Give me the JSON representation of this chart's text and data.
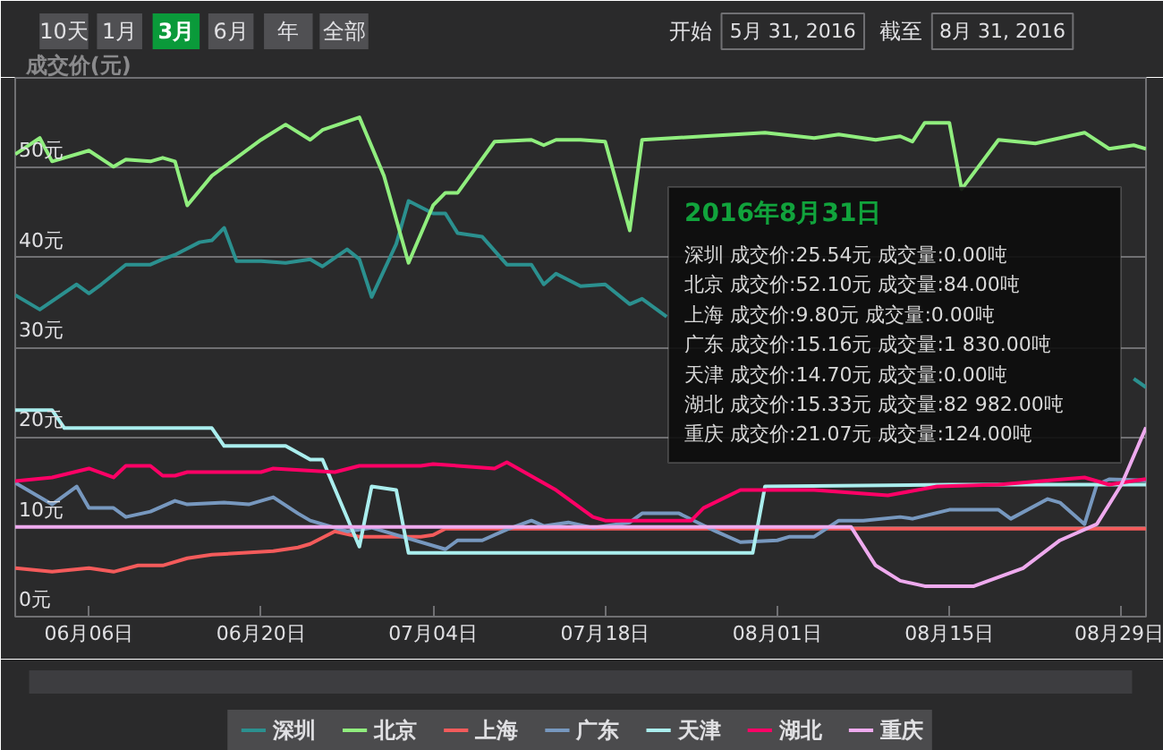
{
  "chart_data": {
    "type": "line",
    "ylabel": "成交价(元)",
    "xlim": [
      "2016-05-31",
      "2016-08-31"
    ],
    "xticks": [
      {
        "value": "2016-06-06",
        "label": "06月06日"
      },
      {
        "value": "2016-06-20",
        "label": "06月20日"
      },
      {
        "value": "2016-07-04",
        "label": "07月04日"
      },
      {
        "value": "2016-07-18",
        "label": "07月18日"
      },
      {
        "value": "2016-08-01",
        "label": "08月01日"
      },
      {
        "value": "2016-08-15",
        "label": "08月15日"
      },
      {
        "value": "2016-08-29",
        "label": "08月29日"
      }
    ],
    "ylim": [
      0,
      60
    ],
    "yticks": [
      {
        "value": 0,
        "label": "0元"
      },
      {
        "value": 10,
        "label": "10元"
      },
      {
        "value": 20,
        "label": "20元"
      },
      {
        "value": 30,
        "label": "30元"
      },
      {
        "value": 40,
        "label": "40元"
      },
      {
        "value": 50,
        "label": "50元"
      }
    ],
    "grid": "y",
    "legend": "bottom",
    "line_style": "solid",
    "series": [
      {
        "name": "深圳",
        "color": "#2b908f",
        "x": [
          "2016-05-31",
          "2016-06-02",
          "2016-06-05",
          "2016-06-06",
          "2016-06-07",
          "2016-06-09",
          "2016-06-11",
          "2016-06-12",
          "2016-06-13",
          "2016-06-15",
          "2016-06-16",
          "2016-06-17",
          "2016-06-18",
          "2016-06-20",
          "2016-06-22",
          "2016-06-24",
          "2016-06-25",
          "2016-06-27",
          "2016-06-28",
          "2016-06-29",
          "2016-07-01",
          "2016-07-02",
          "2016-07-04",
          "2016-07-05",
          "2016-07-06",
          "2016-07-08",
          "2016-07-10",
          "2016-07-12",
          "2016-07-13",
          "2016-07-14",
          "2016-07-16",
          "2016-07-18",
          "2016-07-20",
          "2016-07-21",
          "2016-07-23",
          "2016-08-01",
          "2016-08-28",
          "2016-08-30",
          "2016-08-31"
        ],
        "values": [
          35.8,
          34.2,
          37.0,
          36.0,
          37.0,
          39.2,
          39.2,
          39.8,
          40.3,
          41.7,
          41.9,
          43.3,
          39.6,
          39.6,
          39.4,
          39.8,
          39.0,
          40.9,
          39.8,
          35.6,
          41.5,
          46.3,
          44.9,
          44.9,
          42.7,
          42.3,
          39.2,
          39.2,
          37.0,
          38.2,
          36.8,
          37.0,
          34.8,
          35.4,
          33.4,
          null,
          null,
          26.5,
          25.54
        ]
      },
      {
        "name": "北京",
        "color": "#90ee7e",
        "x": [
          "2016-05-31",
          "2016-06-02",
          "2016-06-03",
          "2016-06-06",
          "2016-06-08",
          "2016-06-09",
          "2016-06-11",
          "2016-06-12",
          "2016-06-13",
          "2016-06-14",
          "2016-06-16",
          "2016-06-18",
          "2016-06-20",
          "2016-06-22",
          "2016-06-24",
          "2016-06-25",
          "2016-06-28",
          "2016-06-30",
          "2016-07-02",
          "2016-07-04",
          "2016-07-05",
          "2016-07-06",
          "2016-07-09",
          "2016-07-12",
          "2016-07-13",
          "2016-07-14",
          "2016-07-16",
          "2016-07-18",
          "2016-07-20",
          "2016-07-21",
          "2016-07-26",
          "2016-07-31",
          "2016-08-04",
          "2016-08-06",
          "2016-08-09",
          "2016-08-11",
          "2016-08-12",
          "2016-08-13",
          "2016-08-15",
          "2016-08-16",
          "2016-08-19",
          "2016-08-22",
          "2016-08-26",
          "2016-08-28",
          "2016-08-30",
          "2016-08-31"
        ],
        "values": [
          51.5,
          53.3,
          50.7,
          51.9,
          50.1,
          50.9,
          50.7,
          51.1,
          50.7,
          45.8,
          49.1,
          51.1,
          53.1,
          54.8,
          53.1,
          54.2,
          55.6,
          49.1,
          39.4,
          45.8,
          47.2,
          47.2,
          52.9,
          53.1,
          52.5,
          53.1,
          53.1,
          52.9,
          43.0,
          53.1,
          53.5,
          53.9,
          53.3,
          53.7,
          53.1,
          53.5,
          52.9,
          55.0,
          55.0,
          47.6,
          53.1,
          52.7,
          53.9,
          52.1,
          52.5,
          52.1
        ]
      },
      {
        "name": "上海",
        "color": "#f45b5b",
        "x": [
          "2016-05-31",
          "2016-06-03",
          "2016-06-06",
          "2016-06-08",
          "2016-06-10",
          "2016-06-12",
          "2016-06-14",
          "2016-06-16",
          "2016-06-21",
          "2016-06-23",
          "2016-06-24",
          "2016-06-26",
          "2016-06-28",
          "2016-07-03",
          "2016-07-04",
          "2016-07-05",
          "2016-08-31"
        ],
        "values": [
          5.4,
          5.0,
          5.4,
          5.0,
          5.7,
          5.7,
          6.5,
          6.9,
          7.3,
          7.7,
          8.1,
          9.5,
          8.9,
          8.9,
          9.1,
          9.8,
          9.8
        ]
      },
      {
        "name": "广东",
        "color": "#7798bf",
        "x": [
          "2016-05-31",
          "2016-06-03",
          "2016-06-05",
          "2016-06-06",
          "2016-06-08",
          "2016-06-09",
          "2016-06-11",
          "2016-06-13",
          "2016-06-14",
          "2016-06-17",
          "2016-06-19",
          "2016-06-21",
          "2016-06-23",
          "2016-06-24",
          "2016-06-27",
          "2016-06-29",
          "2016-07-01",
          "2016-07-05",
          "2016-07-06",
          "2016-07-08",
          "2016-07-10",
          "2016-07-12",
          "2016-07-13",
          "2016-07-15",
          "2016-07-17",
          "2016-07-20",
          "2016-07-21",
          "2016-07-24",
          "2016-07-27",
          "2016-07-29",
          "2016-08-01",
          "2016-08-02",
          "2016-08-04",
          "2016-08-06",
          "2016-08-08",
          "2016-08-11",
          "2016-08-12",
          "2016-08-15",
          "2016-08-19",
          "2016-08-20",
          "2016-08-23",
          "2016-08-24",
          "2016-08-26",
          "2016-08-27",
          "2016-08-28",
          "2016-08-31"
        ],
        "values": [
          14.9,
          12.5,
          14.5,
          12.1,
          12.1,
          11.1,
          11.7,
          12.9,
          12.5,
          12.7,
          12.5,
          13.3,
          11.5,
          10.7,
          9.5,
          9.9,
          9.1,
          7.5,
          8.5,
          8.5,
          9.7,
          10.7,
          10.1,
          10.5,
          9.9,
          10.5,
          11.5,
          11.5,
          9.5,
          8.3,
          8.5,
          8.9,
          8.9,
          10.7,
          10.7,
          11.1,
          10.9,
          11.9,
          11.9,
          10.9,
          13.1,
          12.7,
          10.3,
          14.7,
          15.3,
          15.16
        ]
      },
      {
        "name": "天津",
        "color": "#aaeeee",
        "x": [
          "2016-05-31",
          "2016-06-03",
          "2016-06-04",
          "2016-06-16",
          "2016-06-17",
          "2016-06-22",
          "2016-06-24",
          "2016-06-25",
          "2016-06-28",
          "2016-06-29",
          "2016-07-01",
          "2016-07-02",
          "2016-07-30",
          "2016-07-31",
          "2016-08-15",
          "2016-08-31"
        ],
        "values": [
          23.0,
          23.0,
          21.0,
          21.0,
          19.0,
          19.0,
          17.5,
          17.5,
          7.8,
          14.5,
          14.1,
          7.1,
          7.1,
          14.5,
          14.7,
          14.7
        ]
      },
      {
        "name": "湖北",
        "color": "#ff0066",
        "x": [
          "2016-05-31",
          "2016-06-03",
          "2016-06-06",
          "2016-06-08",
          "2016-06-09",
          "2016-06-11",
          "2016-06-12",
          "2016-06-13",
          "2016-06-14",
          "2016-06-20",
          "2016-06-21",
          "2016-06-26",
          "2016-06-28",
          "2016-07-03",
          "2016-07-04",
          "2016-07-09",
          "2016-07-10",
          "2016-07-14",
          "2016-07-17",
          "2016-07-18",
          "2016-07-20",
          "2016-07-25",
          "2016-07-26",
          "2016-07-29",
          "2016-08-04",
          "2016-08-10",
          "2016-08-14",
          "2016-08-19",
          "2016-08-26",
          "2016-08-28",
          "2016-08-31"
        ],
        "values": [
          15.1,
          15.5,
          16.5,
          15.5,
          16.8,
          16.8,
          15.7,
          15.7,
          16.1,
          16.1,
          16.5,
          16.1,
          16.8,
          16.8,
          17.0,
          16.5,
          17.2,
          14.1,
          11.1,
          10.7,
          10.7,
          10.7,
          12.1,
          14.1,
          14.1,
          13.5,
          14.5,
          14.7,
          15.5,
          14.7,
          15.33
        ]
      },
      {
        "name": "重庆",
        "color": "#eeaaee",
        "x": [
          "2016-05-31",
          "2016-08-07",
          "2016-08-09",
          "2016-08-11",
          "2016-08-13",
          "2016-08-17",
          "2016-08-21",
          "2016-08-24",
          "2016-08-27",
          "2016-08-29",
          "2016-08-31"
        ],
        "values": [
          10.0,
          10.0,
          5.7,
          4.0,
          3.4,
          3.4,
          5.4,
          8.5,
          10.3,
          14.7,
          21.07
        ]
      }
    ],
    "annotations": [
      "10天",
      "1月",
      "3月",
      "6月",
      "年",
      "全部",
      "开始",
      "5月 31, 2016",
      "截至",
      "8月 31, 2016",
      "2016年8月31日",
      "深圳 成交价:25.54元 成交量:0.00吨",
      "北京 成交价:52.10元 成交量:84.00吨",
      "上海 成交价:9.80元 成交量:0.00吨",
      "广东 成交价:15.16元 成交量:1 830.00吨",
      "天津 成交价:14.70元 成交量:0.00吨",
      "湖北 成交价:15.33元 成交量:82 982.00吨",
      "重庆 成交价:21.07元 成交量:124.00吨"
    ]
  }
}
